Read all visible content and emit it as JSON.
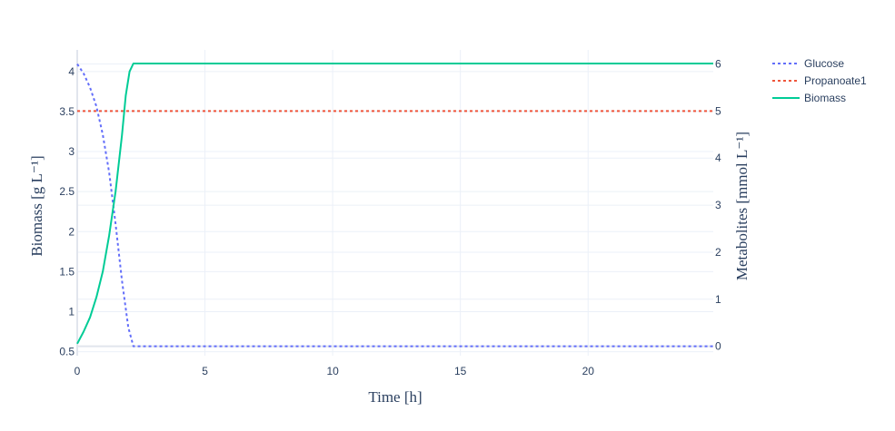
{
  "chart_data": {
    "type": "line",
    "xlabel": "Time [h]",
    "ylabel_left": "Biomass [g L⁻¹]",
    "ylabel_right": "Metabolites [mmol L⁻¹]",
    "xlim": [
      0,
      24.9
    ],
    "ylim_left": [
      0.45,
      4.27
    ],
    "ylim_right": [
      -0.2,
      6.3
    ],
    "x_ticks": [
      0,
      5,
      10,
      15,
      20
    ],
    "y_left_ticks": [
      0.5,
      1,
      1.5,
      2,
      2.5,
      3,
      3.5,
      4
    ],
    "y_right_ticks": [
      0,
      1,
      2,
      3,
      4,
      5,
      6
    ],
    "grid": true,
    "legend_position": "top-right",
    "series": [
      {
        "name": "Glucose",
        "axis": "right",
        "color": "#636efa",
        "dash": "dot",
        "x": [
          0,
          0.25,
          0.5,
          0.75,
          1.0,
          1.25,
          1.5,
          1.75,
          2.0,
          2.2,
          24.9
        ],
        "y": [
          6.0,
          5.8,
          5.5,
          5.1,
          4.5,
          3.7,
          2.6,
          1.4,
          0.4,
          0.0,
          0.0
        ]
      },
      {
        "name": "Propanoate1",
        "axis": "right",
        "color": "#ef553b",
        "dash": "dot",
        "x": [
          0,
          24.9
        ],
        "y": [
          5.0,
          5.0
        ]
      },
      {
        "name": "Biomass",
        "axis": "left",
        "color": "#00cc96",
        "dash": "solid",
        "x": [
          0,
          0.25,
          0.5,
          0.75,
          1.0,
          1.25,
          1.5,
          1.75,
          1.9,
          2.05,
          2.2,
          24.9
        ],
        "y": [
          0.6,
          0.75,
          0.93,
          1.18,
          1.5,
          1.95,
          2.5,
          3.2,
          3.7,
          4.0,
          4.1,
          4.1
        ]
      }
    ]
  }
}
